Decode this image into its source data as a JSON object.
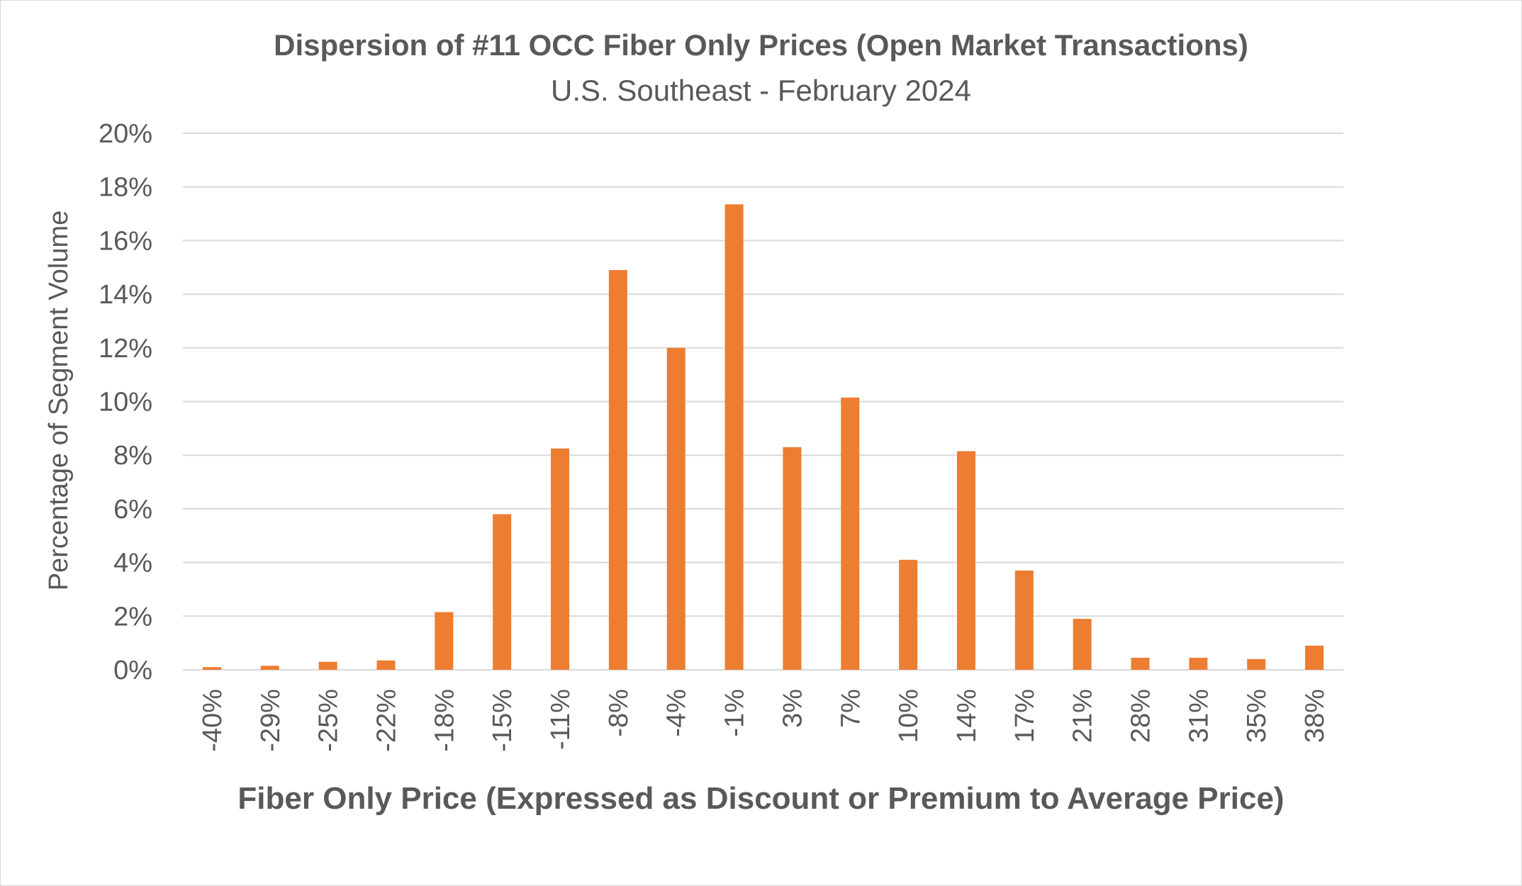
{
  "chart_data": {
    "type": "bar",
    "title": "Dispersion of #11 OCC Fiber Only Prices (Open Market Transactions)",
    "subtitle": "U.S. Southeast - February 2024",
    "xlabel": "Fiber Only Price (Expressed as Discount or Premium to Average Price)",
    "ylabel": "Percentage of Segment Volume",
    "categories": [
      "-40%",
      "-29%",
      "-25%",
      "-22%",
      "-18%",
      "-15%",
      "-11%",
      "-8%",
      "-4%",
      "-1%",
      "3%",
      "7%",
      "10%",
      "14%",
      "17%",
      "21%",
      "28%",
      "31%",
      "35%",
      "38%"
    ],
    "values": [
      0.1,
      0.15,
      0.3,
      0.35,
      2.15,
      5.8,
      8.25,
      14.9,
      12.0,
      17.35,
      8.3,
      10.15,
      4.1,
      8.15,
      3.7,
      1.9,
      0.45,
      0.45,
      0.4,
      0.9
    ],
    "yticks": [
      "0%",
      "2%",
      "4%",
      "6%",
      "8%",
      "10%",
      "12%",
      "14%",
      "16%",
      "18%",
      "20%"
    ],
    "ylim": [
      0,
      20
    ],
    "grid": true,
    "bar_color": "#ed7d31",
    "grid_color": "#d9d9d9",
    "text_color": "#595959"
  }
}
